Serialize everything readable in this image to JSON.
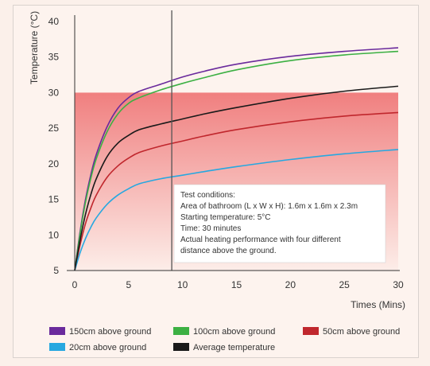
{
  "chart_data": {
    "type": "line",
    "xlabel": "Times (Mins)",
    "ylabel": "Temperature (°C)",
    "xlim": [
      0,
      30
    ],
    "ylim": [
      5,
      40
    ],
    "xticks": [
      "0",
      "5",
      "10",
      "15",
      "20",
      "25",
      "30"
    ],
    "yticks": [
      "5",
      "10",
      "15",
      "20",
      "25",
      "30",
      "35",
      "40"
    ],
    "highlight_band": {
      "y_from": 5,
      "y_to": 30,
      "color": "#f08a8a"
    },
    "vertical_marker_x": 9,
    "annotation": [
      "Test conditions:",
      "Area of bathroom (L x W x H): 1.6m x 1.6m x 2.3m",
      "Starting temperature: 5°C",
      "Time: 30 minutes",
      "Actual heating performance with four different",
      "distance above the ground."
    ],
    "series": [
      {
        "name": "150cm above ground",
        "color": "#6a2a9c",
        "x": [
          0,
          0.5,
          1,
          1.5,
          2,
          3,
          4,
          5,
          6,
          8,
          10,
          12,
          15,
          20,
          25,
          30
        ],
        "y": [
          5,
          10.5,
          15,
          18.5,
          21.3,
          25.2,
          27.8,
          29.3,
          30.2,
          31.2,
          32.2,
          33,
          34,
          35.1,
          35.8,
          36.3
        ]
      },
      {
        "name": "100cm above ground",
        "color": "#3cb043",
        "x": [
          0,
          0.5,
          1,
          1.5,
          2,
          3,
          4,
          5,
          6,
          8,
          10,
          12,
          15,
          20,
          25,
          30
        ],
        "y": [
          5,
          10.2,
          14.6,
          18,
          20.7,
          24.5,
          27,
          28.5,
          29.3,
          30.4,
          31.3,
          32.1,
          33.2,
          34.5,
          35.3,
          35.8
        ]
      },
      {
        "name": "50cm above ground",
        "color": "#c0272d",
        "x": [
          0,
          0.5,
          1,
          1.5,
          2,
          3,
          4,
          5,
          6,
          8,
          10,
          12,
          15,
          20,
          25,
          30
        ],
        "y": [
          5,
          8.6,
          11.6,
          13.8,
          15.6,
          18.1,
          19.7,
          20.8,
          21.6,
          22.5,
          23.2,
          23.9,
          24.8,
          25.9,
          26.7,
          27.2
        ]
      },
      {
        "name": "20cm above ground",
        "color": "#27a8e0",
        "x": [
          0,
          0.5,
          1,
          1.5,
          2,
          3,
          4,
          5,
          6,
          8,
          10,
          12,
          15,
          20,
          25,
          30
        ],
        "y": [
          5,
          7.5,
          9.5,
          11.1,
          12.4,
          14.3,
          15.6,
          16.5,
          17.2,
          17.9,
          18.4,
          18.9,
          19.6,
          20.6,
          21.4,
          22
        ]
      },
      {
        "name": "Average temperature",
        "color": "#1a1a1a",
        "x": [
          0,
          0.5,
          1,
          1.5,
          2,
          3,
          4,
          5,
          6,
          8,
          10,
          12,
          15,
          20,
          25,
          30
        ],
        "y": [
          5,
          9.3,
          12.9,
          15.7,
          17.9,
          21,
          22.9,
          24,
          24.8,
          25.6,
          26.3,
          27,
          27.9,
          29.2,
          30.2,
          30.9
        ]
      }
    ],
    "legend": {
      "position": "bottom",
      "items": [
        {
          "label": "150cm above ground",
          "color": "#6a2a9c"
        },
        {
          "label": "100cm above ground",
          "color": "#3cb043"
        },
        {
          "label": "50cm above ground",
          "color": "#c0272d"
        },
        {
          "label": "20cm above ground",
          "color": "#27a8e0"
        },
        {
          "label": "Average temperature",
          "color": "#1a1a1a"
        }
      ]
    }
  }
}
